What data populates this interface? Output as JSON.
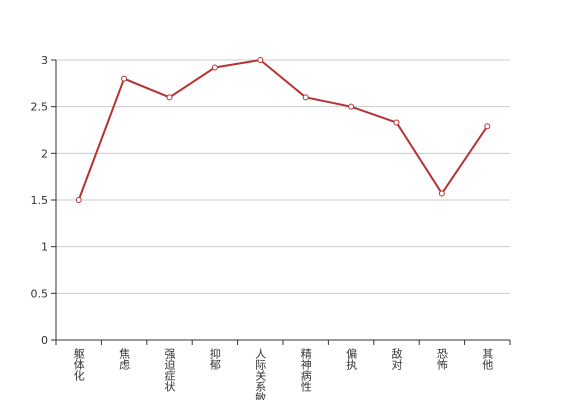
{
  "chart_data": {
    "type": "line",
    "categories": [
      "躯体化",
      "焦虑",
      "强迫症状",
      "抑郁",
      "人际关系敏感",
      "精神病性",
      "偏执",
      "敌对",
      "恐怖",
      "其他"
    ],
    "values": [
      1.5,
      2.8,
      2.6,
      2.92,
      3.0,
      2.6,
      2.5,
      2.33,
      1.57,
      2.29
    ],
    "color": "#b83232",
    "ylim": [
      0,
      3
    ],
    "yticks": [
      0,
      0.5,
      1,
      1.5,
      2,
      2.5,
      3
    ],
    "grid": true
  }
}
